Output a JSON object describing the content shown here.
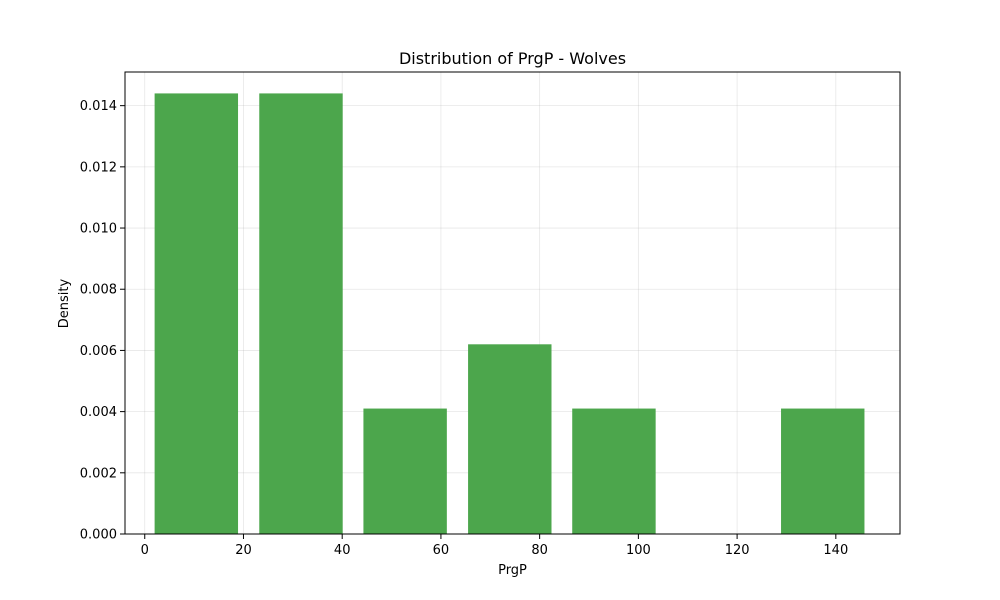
{
  "chart_data": {
    "type": "bar",
    "title": "Distribution of PrgP - Wolves",
    "xlabel": "PrgP",
    "ylabel": "Density",
    "xlim": [
      -4,
      153
    ],
    "ylim": [
      0,
      0.0151
    ],
    "xticks": [
      "0",
      "20",
      "40",
      "60",
      "80",
      "100",
      "120",
      "140"
    ],
    "yticks": [
      "0.000",
      "0.002",
      "0.004",
      "0.006",
      "0.008",
      "0.010",
      "0.012",
      "0.014"
    ],
    "grid": true,
    "bins": [
      {
        "x0": 2.0,
        "x1": 18.9,
        "density": 0.0144
      },
      {
        "x0": 23.2,
        "x1": 40.1,
        "density": 0.0144
      },
      {
        "x0": 44.3,
        "x1": 61.2,
        "density": 0.0041
      },
      {
        "x0": 65.5,
        "x1": 82.4,
        "density": 0.0062
      },
      {
        "x0": 86.6,
        "x1": 103.5,
        "density": 0.0041
      },
      {
        "x0": 107.8,
        "x1": 124.7,
        "density": 0.0
      },
      {
        "x0": 128.9,
        "x1": 145.8,
        "density": 0.0041
      }
    ],
    "bar_color": "#4ca64c"
  }
}
